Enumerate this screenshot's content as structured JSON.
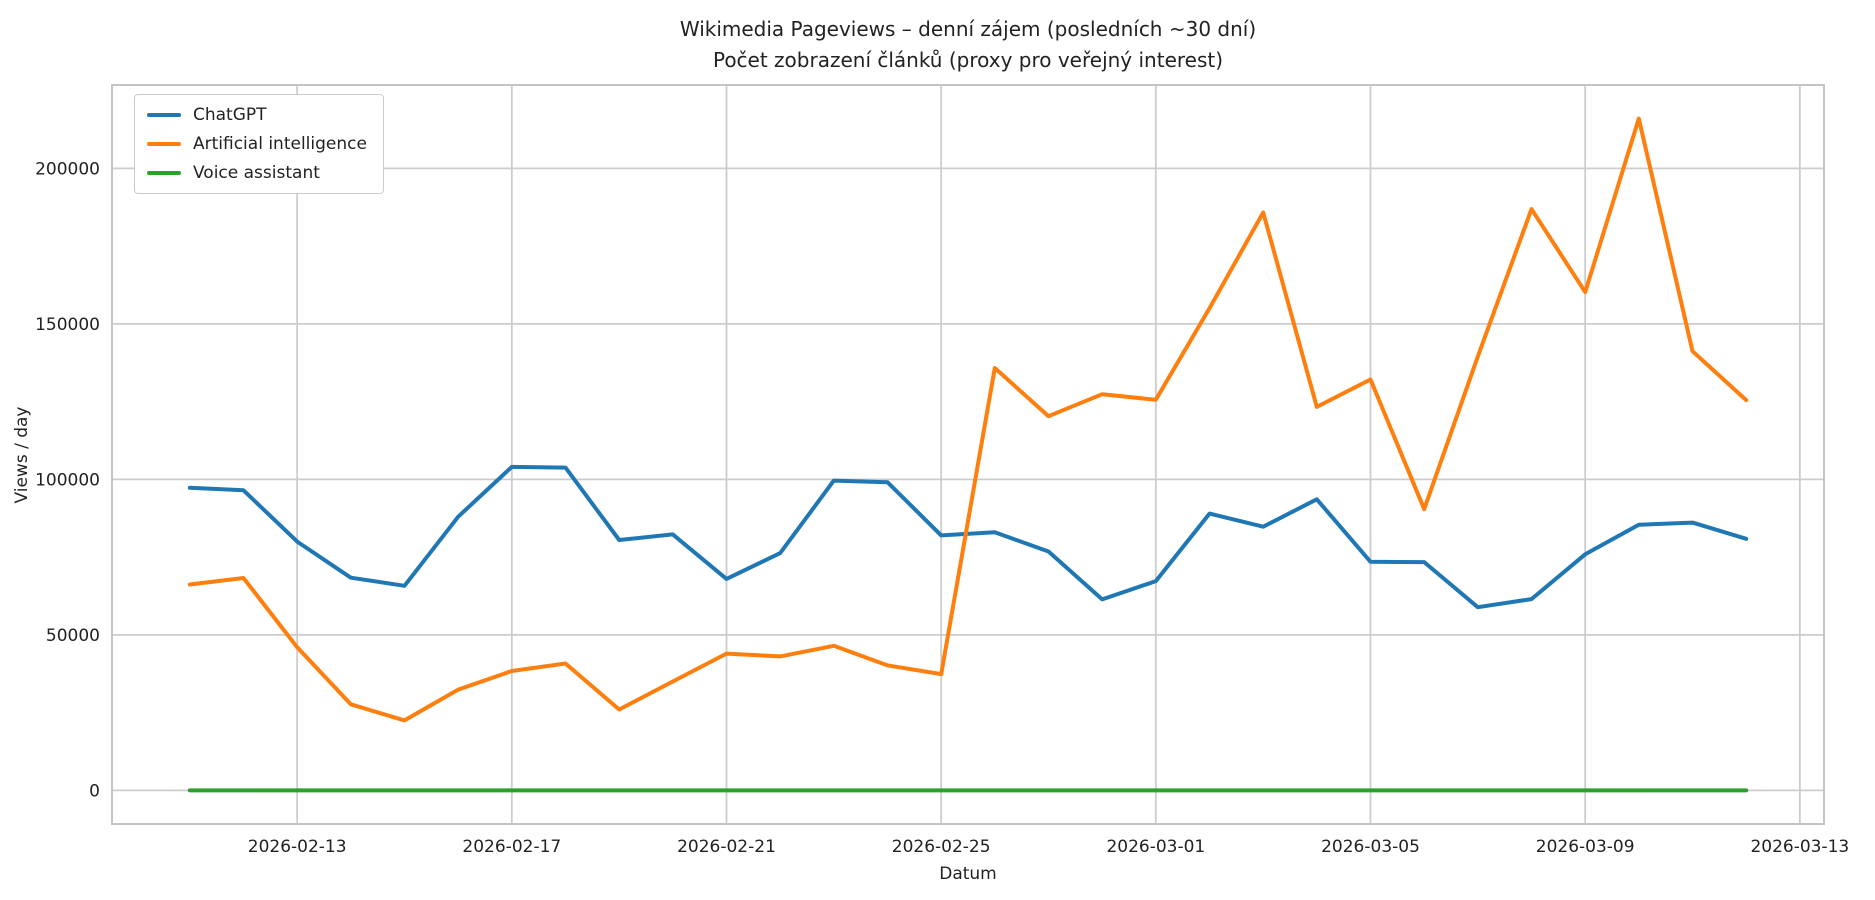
{
  "chart_data": {
    "type": "line",
    "title": "Wikimedia Pageviews – denní zájem (posledních ~30 dní)",
    "subtitle": "Počet zobrazení článků (proxy pro veřejný interest)",
    "xlabel": "Datum",
    "ylabel": "Views / day",
    "grid": true,
    "legend_position": "upper-left",
    "background": "#ffffff",
    "grid_color": "#cccccc",
    "spine_color": "#c4c4c4",
    "text_color": "#222222",
    "dates": [
      "2026-02-11",
      "2026-02-12",
      "2026-02-13",
      "2026-02-14",
      "2026-02-15",
      "2026-02-16",
      "2026-02-17",
      "2026-02-18",
      "2026-02-19",
      "2026-02-20",
      "2026-02-21",
      "2026-02-22",
      "2026-02-23",
      "2026-02-24",
      "2026-02-25",
      "2026-02-26",
      "2026-02-27",
      "2026-02-28",
      "2026-03-01",
      "2026-03-02",
      "2026-03-03",
      "2026-03-04",
      "2026-03-05",
      "2026-03-06",
      "2026-03-07",
      "2026-03-08",
      "2026-03-09",
      "2026-03-10",
      "2026-03-11",
      "2026-03-12"
    ],
    "x_ticks": {
      "day_indices": [
        2,
        6,
        10,
        14,
        18,
        22,
        26,
        30
      ],
      "labels": [
        "2026-02-13",
        "2026-02-17",
        "2026-02-21",
        "2026-02-25",
        "2026-03-01",
        "2026-03-05",
        "2026-03-09",
        "2026-03-13"
      ]
    },
    "y_ticks": [
      0,
      50000,
      100000,
      150000,
      200000
    ],
    "xlim_days": [
      -1.45,
      30.45
    ],
    "ylim": [
      -10800,
      226800
    ],
    "series": [
      {
        "name": "ChatGPT",
        "color": "#1f77b4",
        "values": [
          97300,
          96500,
          80000,
          68400,
          65800,
          88000,
          104000,
          103800,
          80500,
          82300,
          68000,
          76300,
          99600,
          99100,
          82000,
          83000,
          76800,
          61400,
          67300,
          89000,
          84800,
          93600,
          73500,
          73400,
          58900,
          61500,
          75900,
          85400,
          86100,
          80900
        ]
      },
      {
        "name": "Artificial intelligence",
        "color": "#ff7f0e",
        "values": [
          66200,
          68300,
          46000,
          27700,
          22500,
          32400,
          38400,
          40800,
          26000,
          35000,
          44000,
          43100,
          46500,
          40200,
          37400,
          135800,
          120300,
          127400,
          125600,
          155000,
          185800,
          123300,
          132100,
          90400,
          139500,
          186900,
          160200,
          216000,
          141200,
          125500
        ]
      },
      {
        "name": "Voice assistant",
        "color": "#2ca02c",
        "values": [
          0,
          0,
          0,
          0,
          0,
          0,
          0,
          0,
          0,
          0,
          0,
          0,
          0,
          0,
          0,
          0,
          0,
          0,
          0,
          0,
          0,
          0,
          0,
          0,
          0,
          0,
          0,
          0,
          0,
          0
        ]
      }
    ]
  }
}
